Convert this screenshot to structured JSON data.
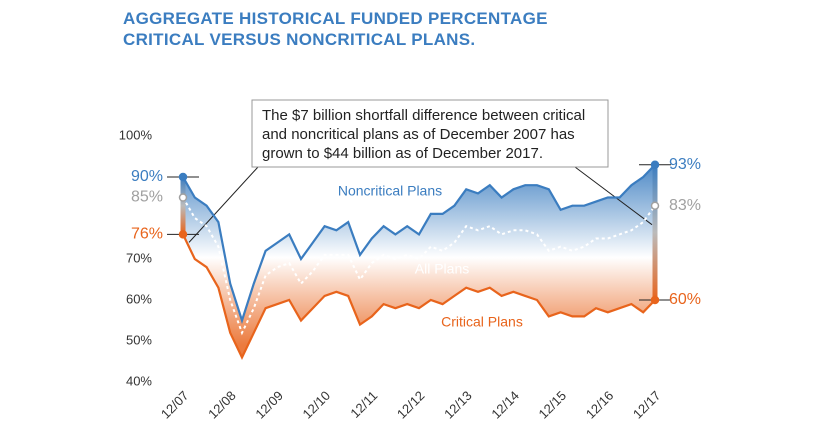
{
  "chart_data": {
    "type": "line",
    "title": "AGGREGATE HISTORICAL FUNDED PERCENTAGE CRITICAL VERSUS NONCRITICAL PLANS.",
    "annotation": "The $7 billion shortfall difference between critical and noncritical plans as of December 2007 has grown to $44 billion as of December 2017.",
    "categories": [
      "12/07",
      null,
      null,
      null,
      "12/08",
      null,
      null,
      null,
      "12/09",
      null,
      null,
      null,
      "12/10",
      null,
      null,
      null,
      "12/11",
      null,
      null,
      null,
      "12/12",
      null,
      null,
      null,
      "12/13",
      null,
      null,
      null,
      "12/14",
      null,
      null,
      null,
      "12/15",
      null,
      null,
      null,
      "12/16",
      null,
      null,
      null,
      "12/17"
    ],
    "series": [
      {
        "name": "Noncritical Plans",
        "color": "#3b7dc0",
        "label_color": "#3b7dc0",
        "values": [
          90,
          85,
          83,
          79,
          64,
          55,
          64,
          72,
          74,
          76,
          70,
          74,
          78,
          77,
          79,
          71,
          75,
          78,
          76,
          78,
          76,
          81,
          81,
          83,
          87,
          86,
          88,
          85,
          87,
          88,
          88,
          87,
          82,
          83,
          83,
          84,
          85,
          85,
          88,
          90,
          93
        ],
        "value_labels": [
          "90%",
          null,
          null,
          null,
          null,
          null,
          null,
          null,
          null,
          null,
          null,
          null,
          null,
          null,
          null,
          null,
          null,
          null,
          null,
          null,
          null,
          null,
          null,
          null,
          null,
          null,
          null,
          null,
          null,
          null,
          null,
          null,
          null,
          null,
          null,
          null,
          null,
          null,
          null,
          null,
          "93%"
        ]
      },
      {
        "name": "All Plans",
        "color": "#ffffff",
        "label_color": "#a0a0a0",
        "values": [
          85,
          80,
          78,
          73,
          60,
          52,
          58,
          66,
          68,
          69,
          64,
          67,
          71,
          71,
          71,
          65,
          69,
          71,
          70,
          71,
          70,
          73,
          72,
          74,
          78,
          77,
          78,
          76,
          77,
          77,
          76,
          72,
          73,
          72,
          73,
          75,
          75,
          76,
          77,
          79,
          83
        ],
        "value_labels": [
          "85%",
          null,
          null,
          null,
          null,
          null,
          null,
          null,
          null,
          null,
          null,
          null,
          null,
          null,
          null,
          null,
          null,
          null,
          null,
          null,
          null,
          null,
          null,
          null,
          null,
          null,
          null,
          null,
          null,
          null,
          null,
          null,
          null,
          null,
          null,
          null,
          null,
          null,
          null,
          null,
          "83%"
        ]
      },
      {
        "name": "Critical Plans",
        "color": "#e8641c",
        "label_color": "#e8641c",
        "values": [
          76,
          70,
          68,
          63,
          52,
          46,
          52,
          58,
          59,
          60,
          55,
          58,
          61,
          62,
          61,
          54,
          56,
          59,
          58,
          59,
          58,
          60,
          59,
          61,
          63,
          62,
          63,
          61,
          62,
          61,
          60,
          56,
          57,
          56,
          56,
          58,
          57,
          58,
          59,
          57,
          60
        ],
        "value_labels": [
          "76%",
          null,
          null,
          null,
          null,
          null,
          null,
          null,
          null,
          null,
          null,
          null,
          null,
          null,
          null,
          null,
          null,
          null,
          null,
          null,
          null,
          null,
          null,
          null,
          null,
          null,
          null,
          null,
          null,
          null,
          null,
          null,
          null,
          null,
          null,
          null,
          null,
          null,
          null,
          null,
          "60%"
        ]
      }
    ],
    "ylim": [
      40,
      100
    ],
    "yticks": [
      {
        "value": 40,
        "label": "40%"
      },
      {
        "value": 50,
        "label": "50%"
      },
      {
        "value": 60,
        "label": "60%"
      },
      {
        "value": 70,
        "label": "70%"
      },
      {
        "value": 100,
        "label": "100%"
      }
    ]
  }
}
